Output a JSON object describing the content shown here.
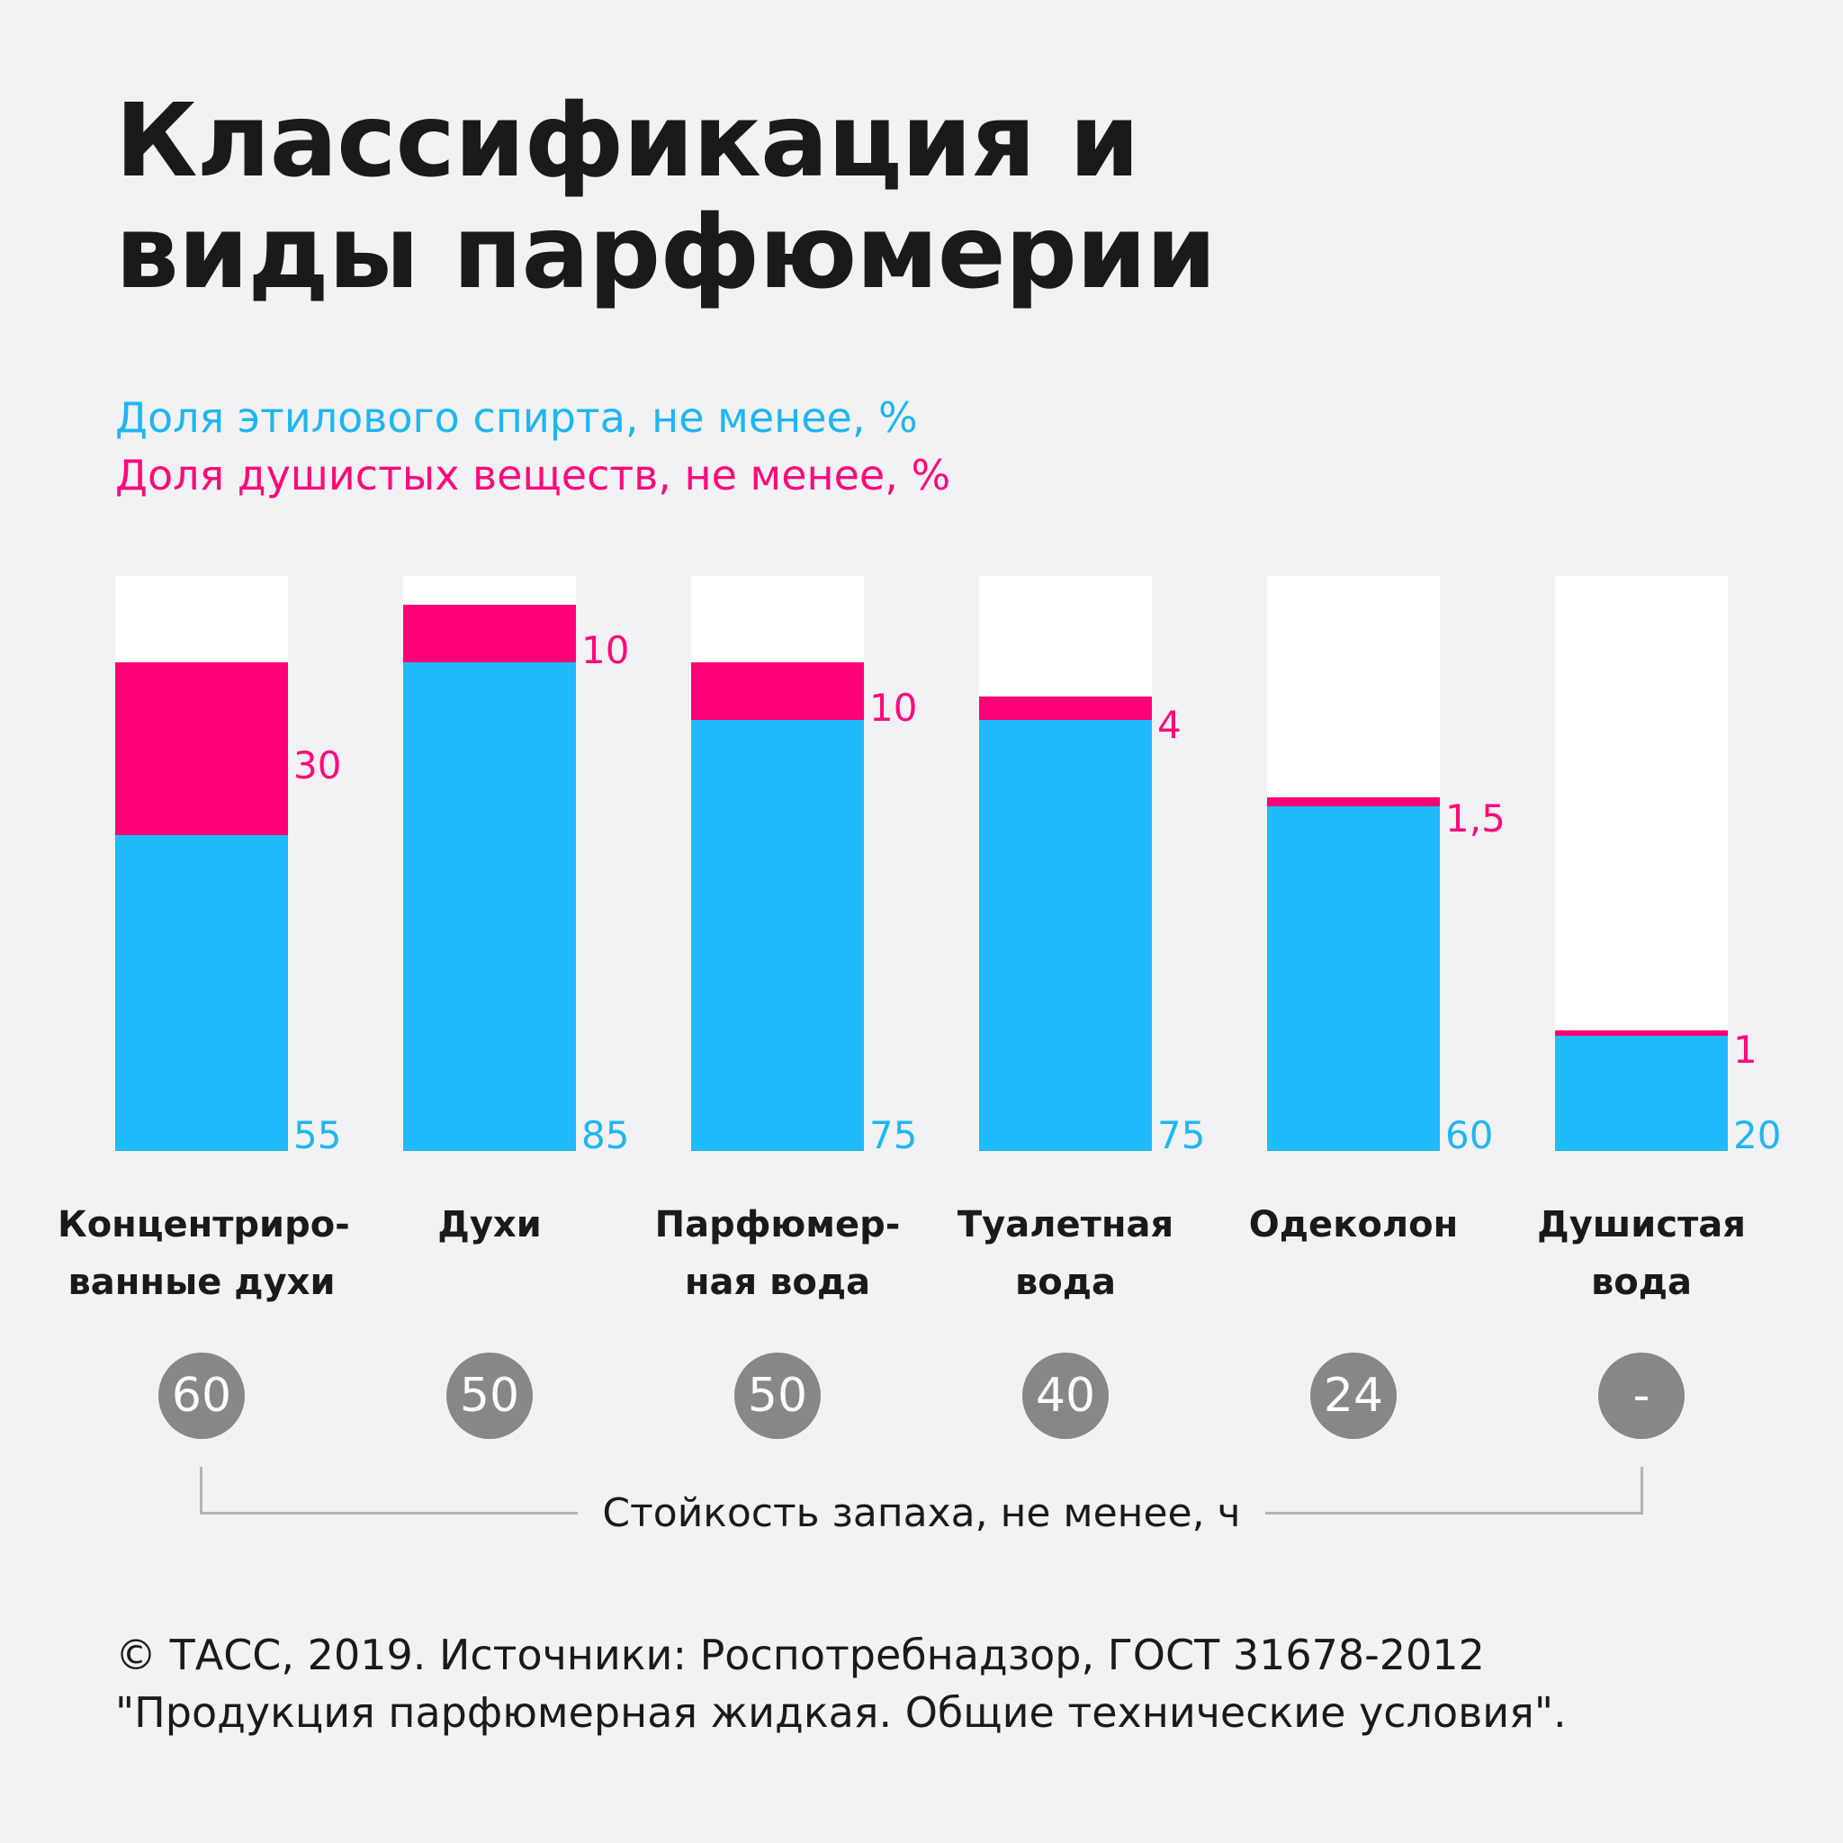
{
  "title": "Классификация и виды парфюмерии",
  "legend": {
    "alcohol": "Доля этилового спирта, не менее, %",
    "fragrance": "Доля душистых веществ, не менее, %"
  },
  "colors": {
    "alcohol": "#1fbbfb",
    "fragrance": "#ff0077",
    "background": "#f2f2f4",
    "track": "#ffffff",
    "durability_circle": "#878787"
  },
  "chart_data": {
    "type": "bar",
    "stacked": true,
    "ylim": [
      0,
      100
    ],
    "categories": [
      "Концентриро-\nванные духи",
      "Духи",
      "Парфюмер-\nная вода",
      "Туалетная\nвода",
      "Одеколон",
      "Душистая\nвода"
    ],
    "series": [
      {
        "name": "Доля этилового спирта, не менее, %",
        "values": [
          55,
          85,
          75,
          75,
          60,
          20
        ],
        "labels": [
          "55",
          "85",
          "75",
          "75",
          "60",
          "20"
        ]
      },
      {
        "name": "Доля душистых веществ, не менее, %",
        "values": [
          30,
          10,
          10,
          4,
          1.5,
          1
        ],
        "labels": [
          "30",
          "10",
          "10",
          "4",
          "1,5",
          "1"
        ]
      }
    ],
    "durability": {
      "label": "Стойкость запаха, не менее, ч",
      "values": [
        "60",
        "50",
        "50",
        "40",
        "24",
        "-"
      ]
    }
  },
  "footer": {
    "line1": "© ТАСС, 2019. Источники: Роспотребнадзор, ГОСТ 31678-2012",
    "line2": "\"Продукция парфюмерная жидкая. Общие технические условия\"."
  }
}
